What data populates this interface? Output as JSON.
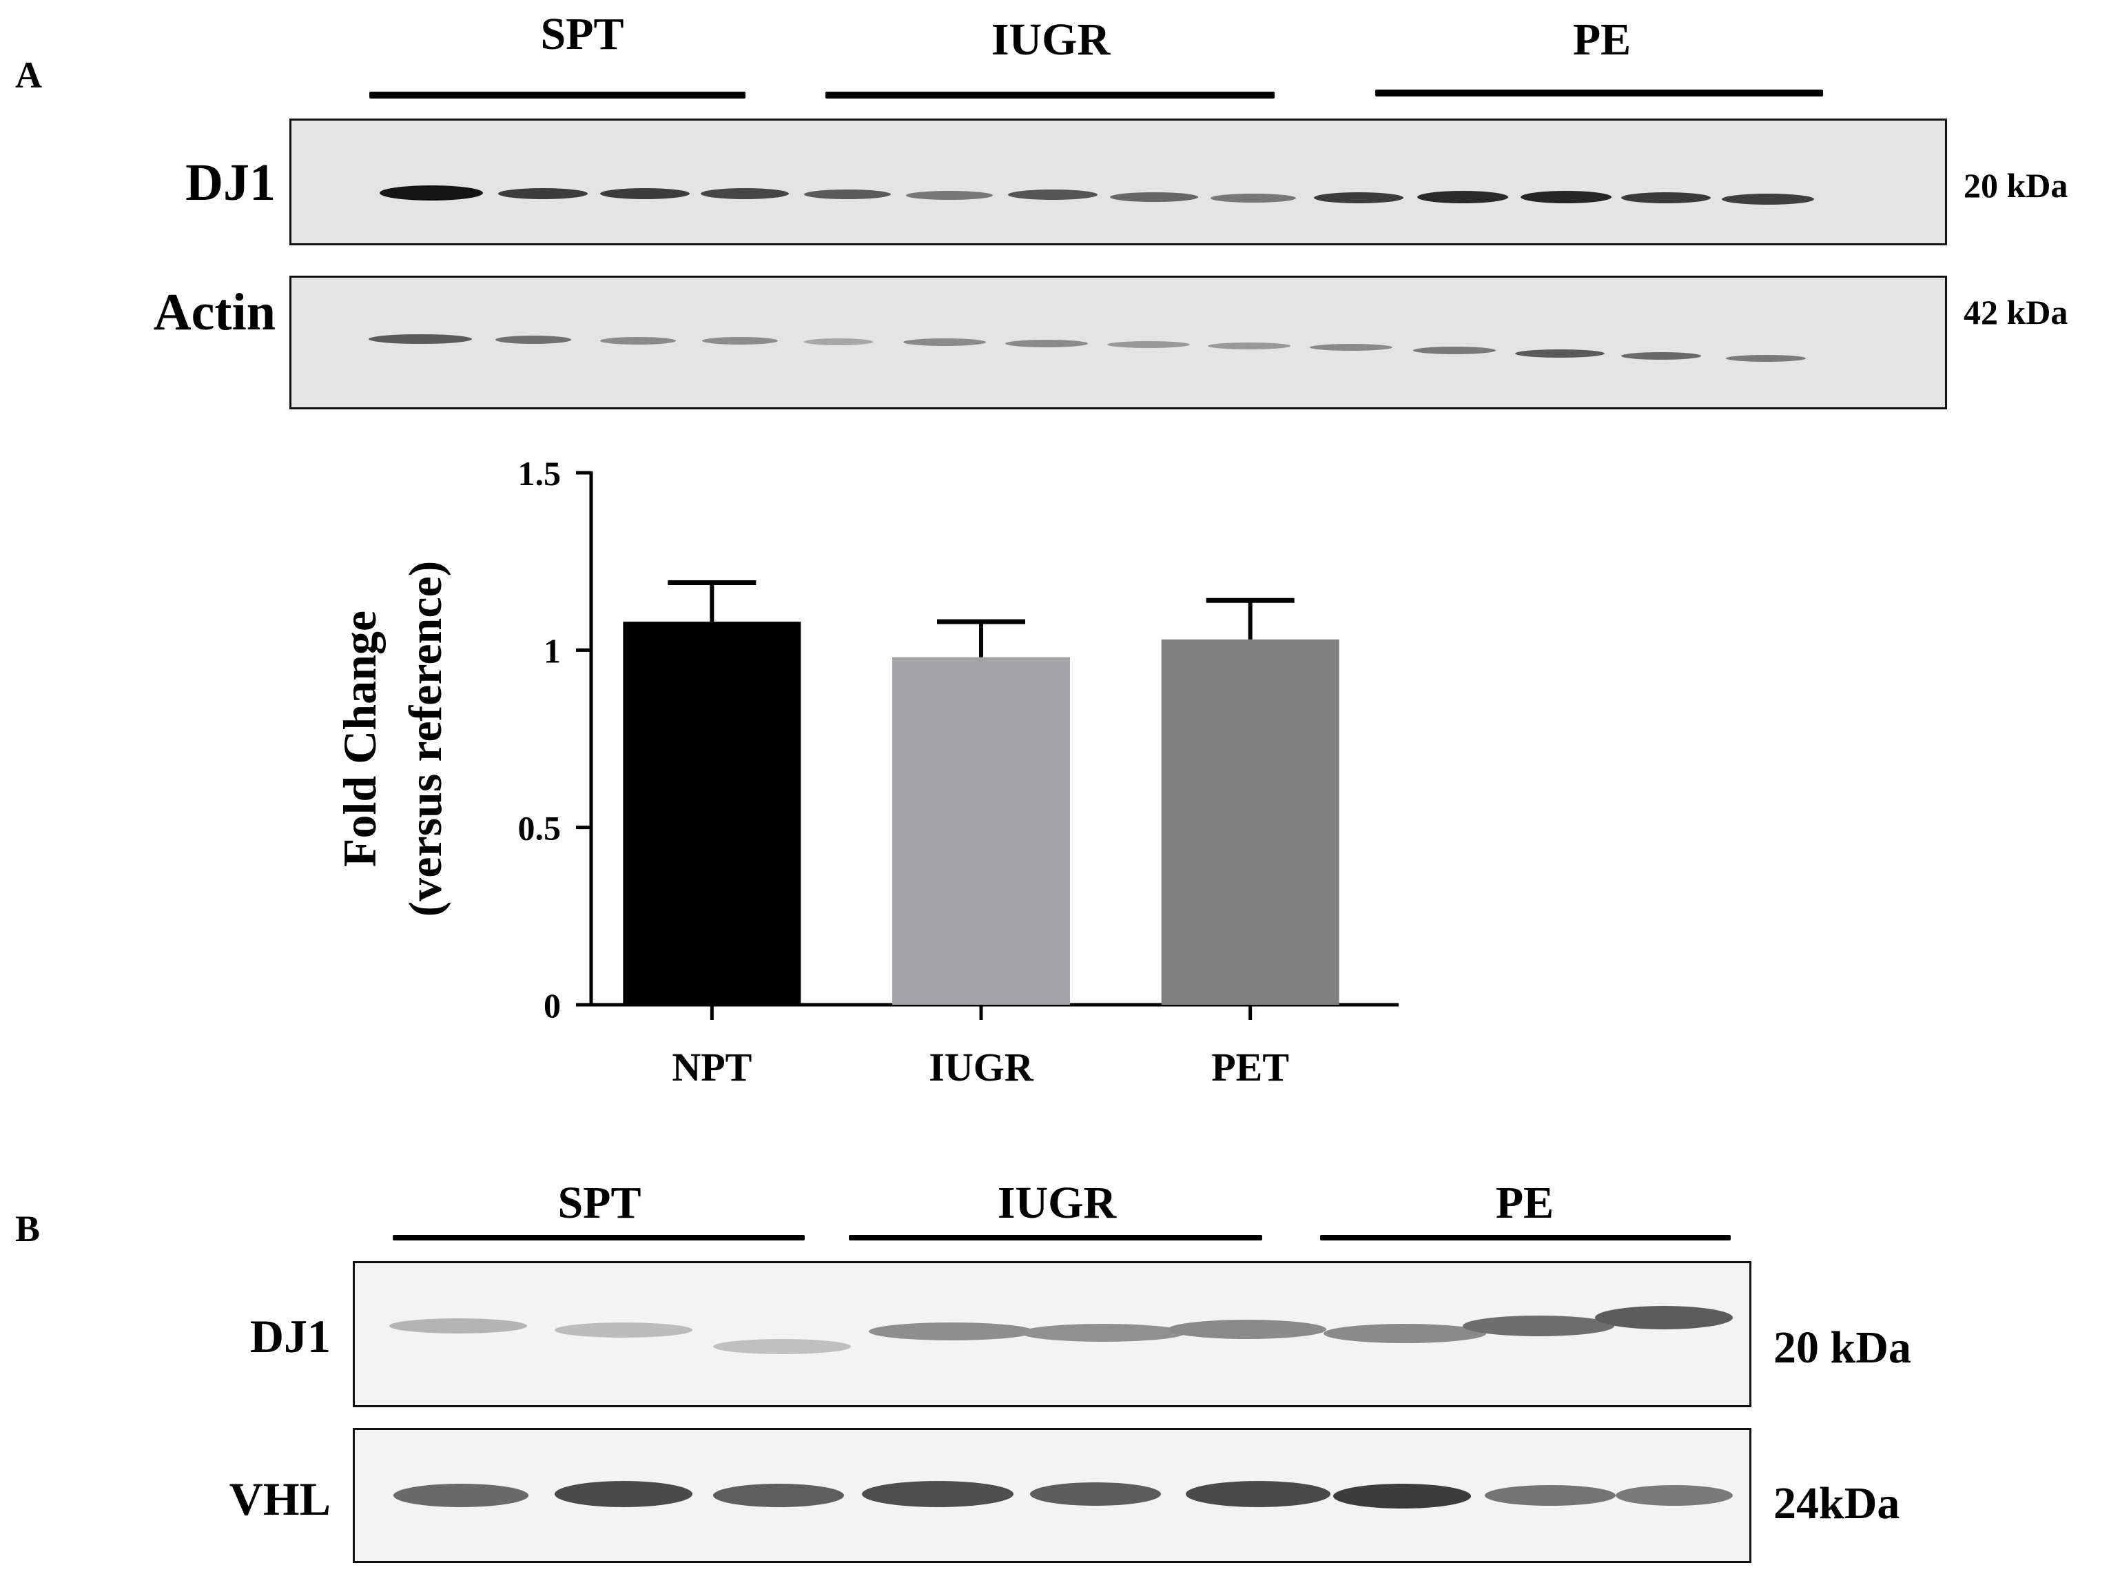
{
  "panel_a": {
    "letter": "A",
    "groups": [
      "SPT",
      "IUGR",
      "PE"
    ],
    "blot_rows": [
      {
        "label": "DJ1",
        "size": "20 kDa"
      },
      {
        "label": "Actin",
        "size": "42 kDa"
      }
    ]
  },
  "panel_b": {
    "letter": "B",
    "groups": [
      "SPT",
      "IUGR",
      "PE"
    ],
    "blot_rows": [
      {
        "label": "DJ1",
        "size": "20 kDa"
      },
      {
        "label": "VHL",
        "size": "24kDa"
      }
    ]
  },
  "chart_data": {
    "type": "bar",
    "categories": [
      "NPT",
      "IUGR",
      "PET"
    ],
    "values": [
      1.08,
      0.98,
      1.03
    ],
    "errors": [
      0.11,
      0.1,
      0.11
    ],
    "bar_colors": [
      "#000000",
      "#a3a3a7",
      "#808080"
    ],
    "title": "",
    "xlabel": "",
    "ylabel": "Fold Change",
    "ylabel_sub": "(versus reference)",
    "ylim": [
      0,
      1.5
    ],
    "yticks": [
      0,
      0.5,
      1,
      1.5
    ],
    "ytick_labels": [
      "0",
      "0.5",
      "1",
      "1.5"
    ],
    "grid": false
  }
}
